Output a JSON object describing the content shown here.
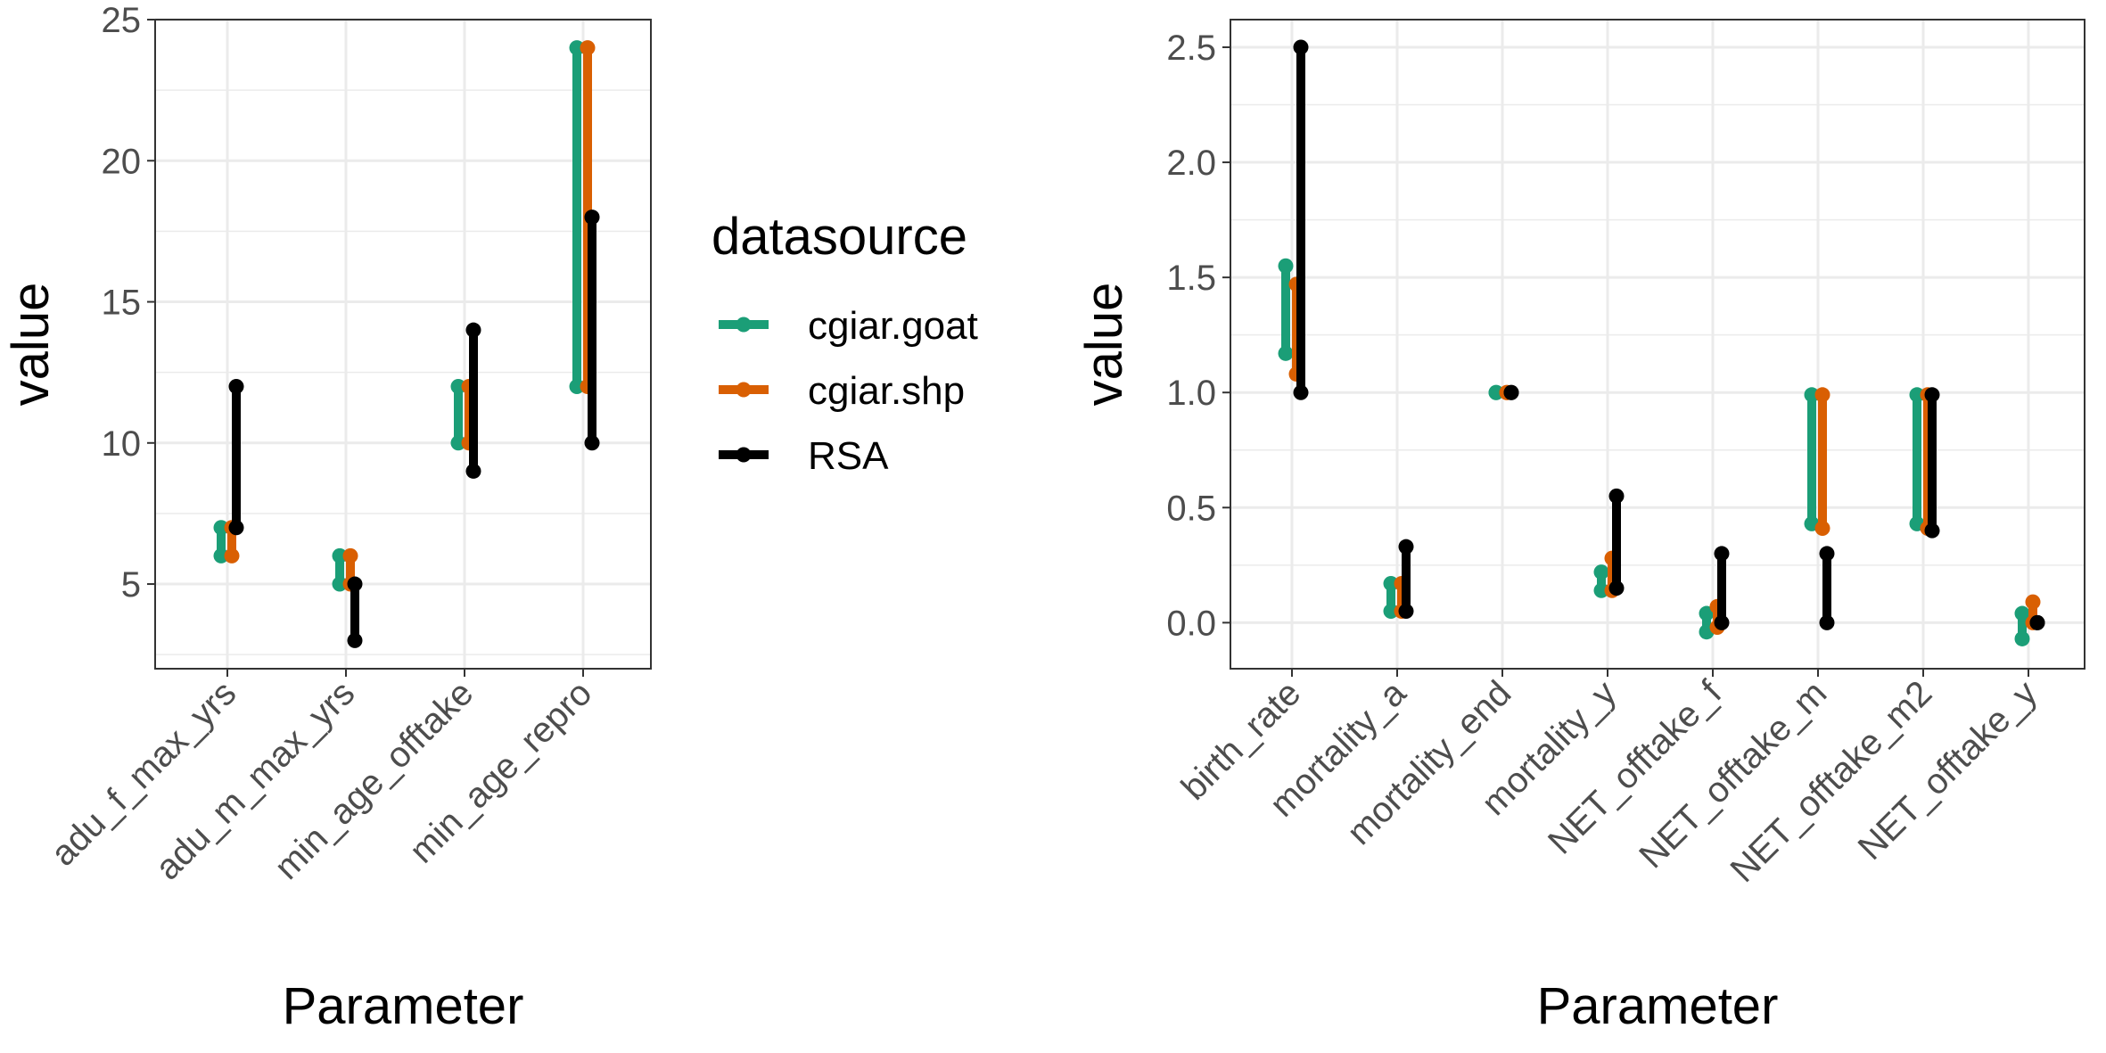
{
  "legend": {
    "title": "datasource",
    "items": [
      {
        "label": "cgiar.goat",
        "color": "#1b9e77"
      },
      {
        "label": "cgiar.shp",
        "color": "#d95f02"
      },
      {
        "label": "RSA",
        "color": "#000000"
      }
    ]
  },
  "chart_data": [
    {
      "type": "range-dot",
      "xlabel": "Parameter",
      "ylabel": "value",
      "ylim": [
        2,
        25
      ],
      "yticks": [
        5,
        10,
        15,
        20,
        25
      ],
      "grid": true,
      "categories": [
        "adu_f_max_yrs",
        "adu_m_max_yrs",
        "min_age_offtake",
        "min_age_repro"
      ],
      "series": [
        {
          "name": "cgiar.goat",
          "ranges": [
            [
              6,
              7
            ],
            [
              5,
              6
            ],
            [
              10,
              12
            ],
            [
              12,
              24
            ]
          ]
        },
        {
          "name": "cgiar.shp",
          "ranges": [
            [
              6,
              7
            ],
            [
              5,
              6
            ],
            [
              10,
              12
            ],
            [
              12,
              24
            ]
          ]
        },
        {
          "name": "RSA",
          "ranges": [
            [
              7,
              12
            ],
            [
              3,
              5
            ],
            [
              9,
              14
            ],
            [
              10,
              18
            ]
          ]
        }
      ]
    },
    {
      "type": "range-dot",
      "xlabel": "Parameter",
      "ylabel": "value",
      "ylim": [
        -0.2,
        2.62
      ],
      "yticks": [
        0.0,
        0.5,
        1.0,
        1.5,
        2.0,
        2.5
      ],
      "ytick_labels": [
        "0.0",
        "0.5",
        "1.0",
        "1.5",
        "2.0",
        "2.5"
      ],
      "grid": true,
      "categories": [
        "birth_rate",
        "mortality_a",
        "mortality_end",
        "mortality_y",
        "NET_offtake_f",
        "NET_offtake_m",
        "NET_offtake_m2",
        "NET_offtake_y"
      ],
      "series": [
        {
          "name": "cgiar.goat",
          "ranges": [
            [
              1.17,
              1.55
            ],
            [
              0.05,
              0.17
            ],
            [
              1.0,
              1.0
            ],
            [
              0.14,
              0.22
            ],
            [
              -0.04,
              0.04
            ],
            [
              0.43,
              0.99
            ],
            [
              0.43,
              0.99
            ],
            [
              -0.07,
              0.04
            ]
          ]
        },
        {
          "name": "cgiar.shp",
          "ranges": [
            [
              1.08,
              1.47
            ],
            [
              0.05,
              0.17
            ],
            [
              1.0,
              1.0
            ],
            [
              0.14,
              0.28
            ],
            [
              -0.02,
              0.07
            ],
            [
              0.41,
              0.99
            ],
            [
              0.41,
              0.99
            ],
            [
              0.0,
              0.09
            ]
          ]
        },
        {
          "name": "RSA",
          "ranges": [
            [
              1.0,
              2.5
            ],
            [
              0.05,
              0.33
            ],
            [
              1.0,
              1.0
            ],
            [
              0.15,
              0.55
            ],
            [
              0.0,
              0.3
            ],
            [
              0.0,
              0.3
            ],
            [
              0.4,
              0.99
            ],
            [
              0.0,
              0.0
            ]
          ]
        }
      ]
    }
  ]
}
